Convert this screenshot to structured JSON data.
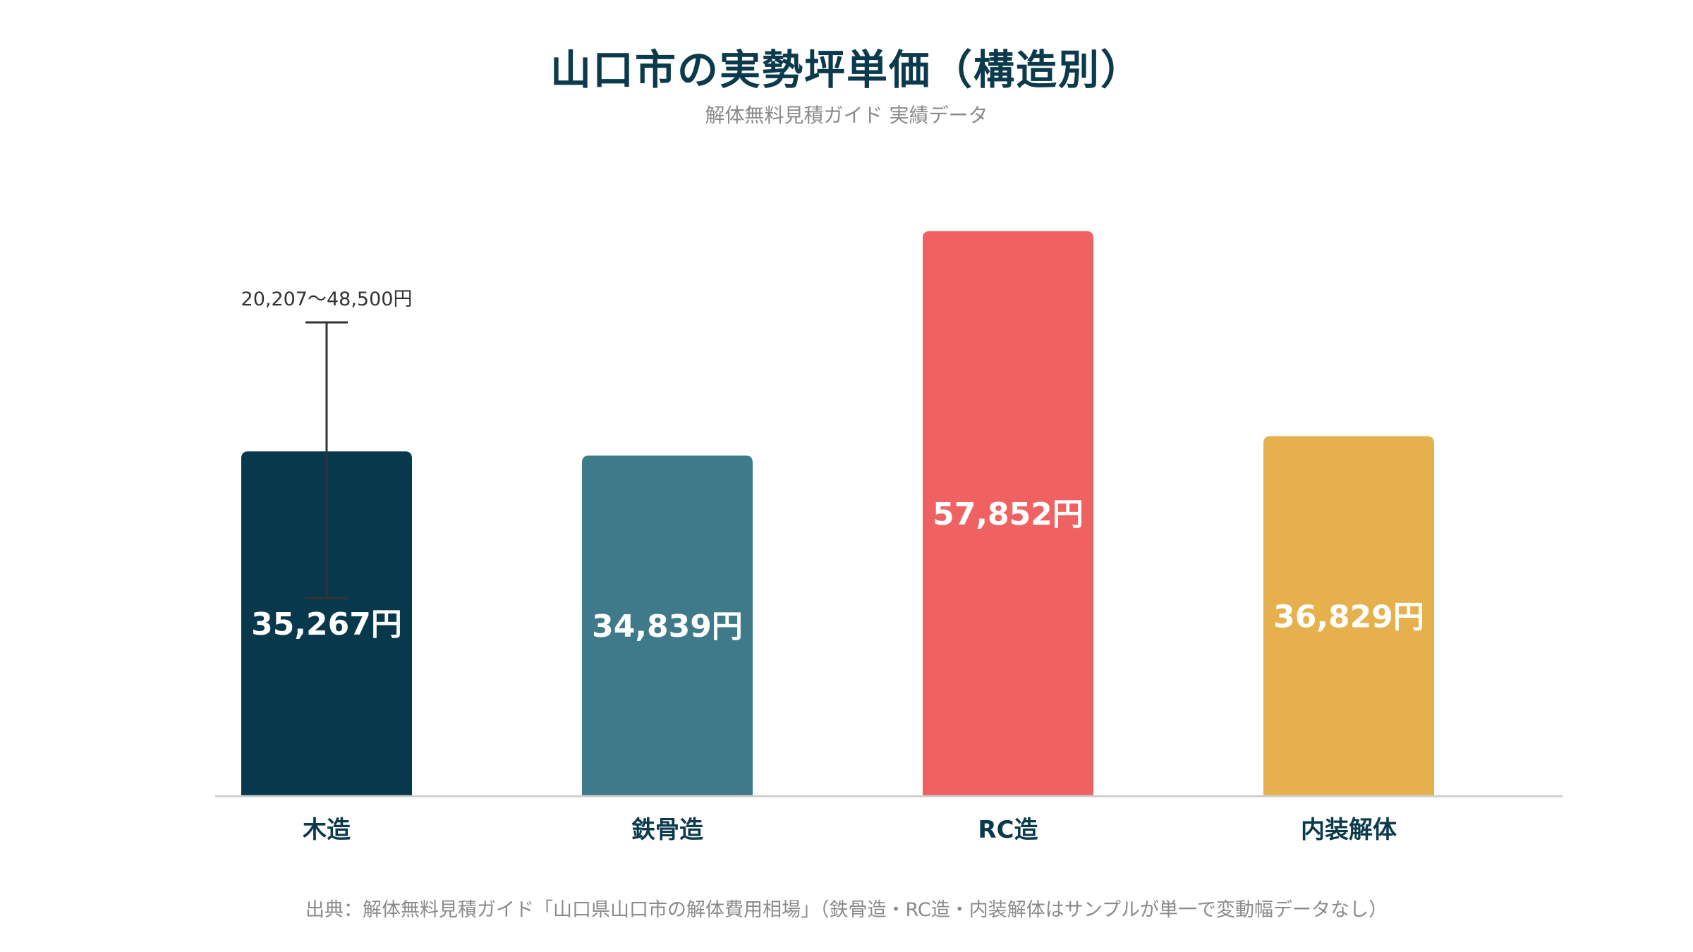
{
  "chart_data": {
    "type": "bar",
    "title": "山口市の実勢坪単価（構造別）",
    "subtitle": "解体無料見積ガイド 実績データ",
    "categories": [
      "木造",
      "鉄骨造",
      "RC造",
      "内装解体"
    ],
    "values": [
      35267,
      34839,
      57852,
      36829
    ],
    "value_labels": [
      "35,267円",
      "34,839円",
      "57,852円",
      "36,829円"
    ],
    "colors": [
      "#07384b",
      "#3f7a8a",
      "#f06262",
      "#e6b04c"
    ],
    "ylim": [
      0,
      60000
    ],
    "grid": false,
    "legend": "none",
    "error_bar": {
      "category": "木造",
      "low": 20207,
      "high": 48500,
      "label": "20,207〜48,500円"
    },
    "source": "出典：解体無料見積ガイド「山口県山口市の解体費用相場」（鉄骨造・RC造・内装解体はサンプルが単一で変動幅データなし）"
  }
}
